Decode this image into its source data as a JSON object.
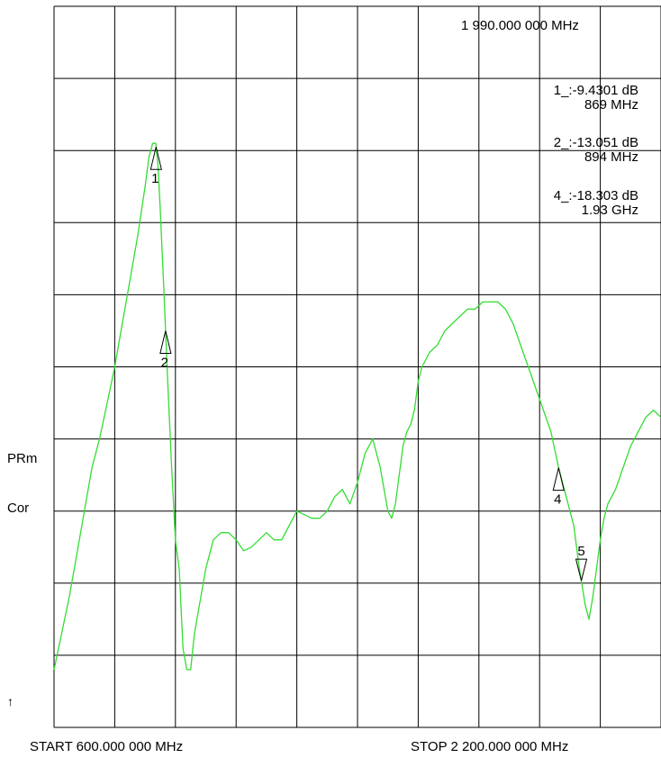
{
  "colors": {
    "trace": "#33dd33",
    "grid": "#000000",
    "background": "#ffffff",
    "text": "#000000"
  },
  "annotations": {
    "active_freq": "1 990.000 000 MHz",
    "start_label": "START  600.000 000 MHz",
    "stop_label": "STOP 2 200.000 000 MHz",
    "left_label_1": "PRm",
    "left_label_2": "Cor",
    "reference_arrow": "↑"
  },
  "marker_readouts": [
    {
      "line1": "1_:-9.4301 dB",
      "line2": "869 MHz"
    },
    {
      "line1": "2_:-13.051 dB",
      "line2": "894 MHz"
    },
    {
      "line1": "4_:-18.303 dB",
      "line2": "1.93 GHz"
    }
  ],
  "chart_data": {
    "type": "line",
    "x_unit": "MHz",
    "xlim": [
      600,
      2200
    ],
    "divisions": {
      "x": 10,
      "y": 10
    },
    "grid": true,
    "y_scale": "linear",
    "reference_division": 7,
    "y_note": "y values given in grid divisions counted upward from the bottom graticule line",
    "series": [
      {
        "x": [
          600,
          620,
          640,
          660,
          680,
          700,
          720,
          740,
          760,
          780,
          800,
          820,
          840,
          850,
          860,
          868,
          874,
          880,
          890,
          898,
          910,
          920,
          930,
          940,
          950,
          960,
          970,
          980,
          990,
          1000,
          1020,
          1040,
          1060,
          1080,
          1100,
          1120,
          1140,
          1160,
          1180,
          1200,
          1220,
          1240,
          1260,
          1280,
          1300,
          1320,
          1340,
          1360,
          1380,
          1400,
          1420,
          1440,
          1460,
          1480,
          1490,
          1500,
          1510,
          1520,
          1530,
          1540,
          1550,
          1560,
          1570,
          1590,
          1610,
          1630,
          1650,
          1670,
          1690,
          1710,
          1730,
          1750,
          1770,
          1790,
          1810,
          1830,
          1850,
          1870,
          1890,
          1910,
          1930,
          1950,
          1970,
          1985,
          2000,
          2010,
          2020,
          2030,
          2040,
          2050,
          2060,
          2080,
          2100,
          2120,
          2140,
          2160,
          2180,
          2200
        ],
        "y": [
          0.8,
          1.3,
          1.8,
          2.4,
          3.0,
          3.6,
          4.0,
          4.5,
          5.0,
          5.6,
          6.2,
          6.8,
          7.5,
          7.9,
          8.1,
          8.1,
          7.8,
          7.2,
          6.0,
          5.0,
          3.6,
          2.6,
          2.2,
          1.1,
          0.8,
          0.8,
          1.3,
          1.6,
          1.9,
          2.2,
          2.6,
          2.7,
          2.7,
          2.6,
          2.45,
          2.5,
          2.6,
          2.7,
          2.6,
          2.6,
          2.8,
          3.0,
          2.95,
          2.9,
          2.9,
          3.0,
          3.2,
          3.3,
          3.1,
          3.4,
          3.8,
          4.0,
          3.6,
          3.0,
          2.9,
          3.1,
          3.5,
          3.9,
          4.1,
          4.2,
          4.4,
          4.8,
          5.0,
          5.2,
          5.3,
          5.5,
          5.6,
          5.7,
          5.8,
          5.8,
          5.9,
          5.9,
          5.9,
          5.8,
          5.6,
          5.3,
          5.0,
          4.7,
          4.4,
          4.1,
          3.6,
          3.2,
          2.8,
          2.2,
          1.7,
          1.5,
          1.8,
          2.2,
          2.6,
          2.9,
          3.1,
          3.3,
          3.6,
          3.9,
          4.1,
          4.3,
          4.4,
          4.3
        ]
      }
    ],
    "markers": [
      {
        "label": "1",
        "x": 869,
        "direction": "up"
      },
      {
        "label": "2",
        "x": 894,
        "direction": "up"
      },
      {
        "label": "4",
        "x": 1930,
        "direction": "up"
      },
      {
        "label": "5",
        "x": 1990,
        "direction": "down"
      }
    ]
  }
}
